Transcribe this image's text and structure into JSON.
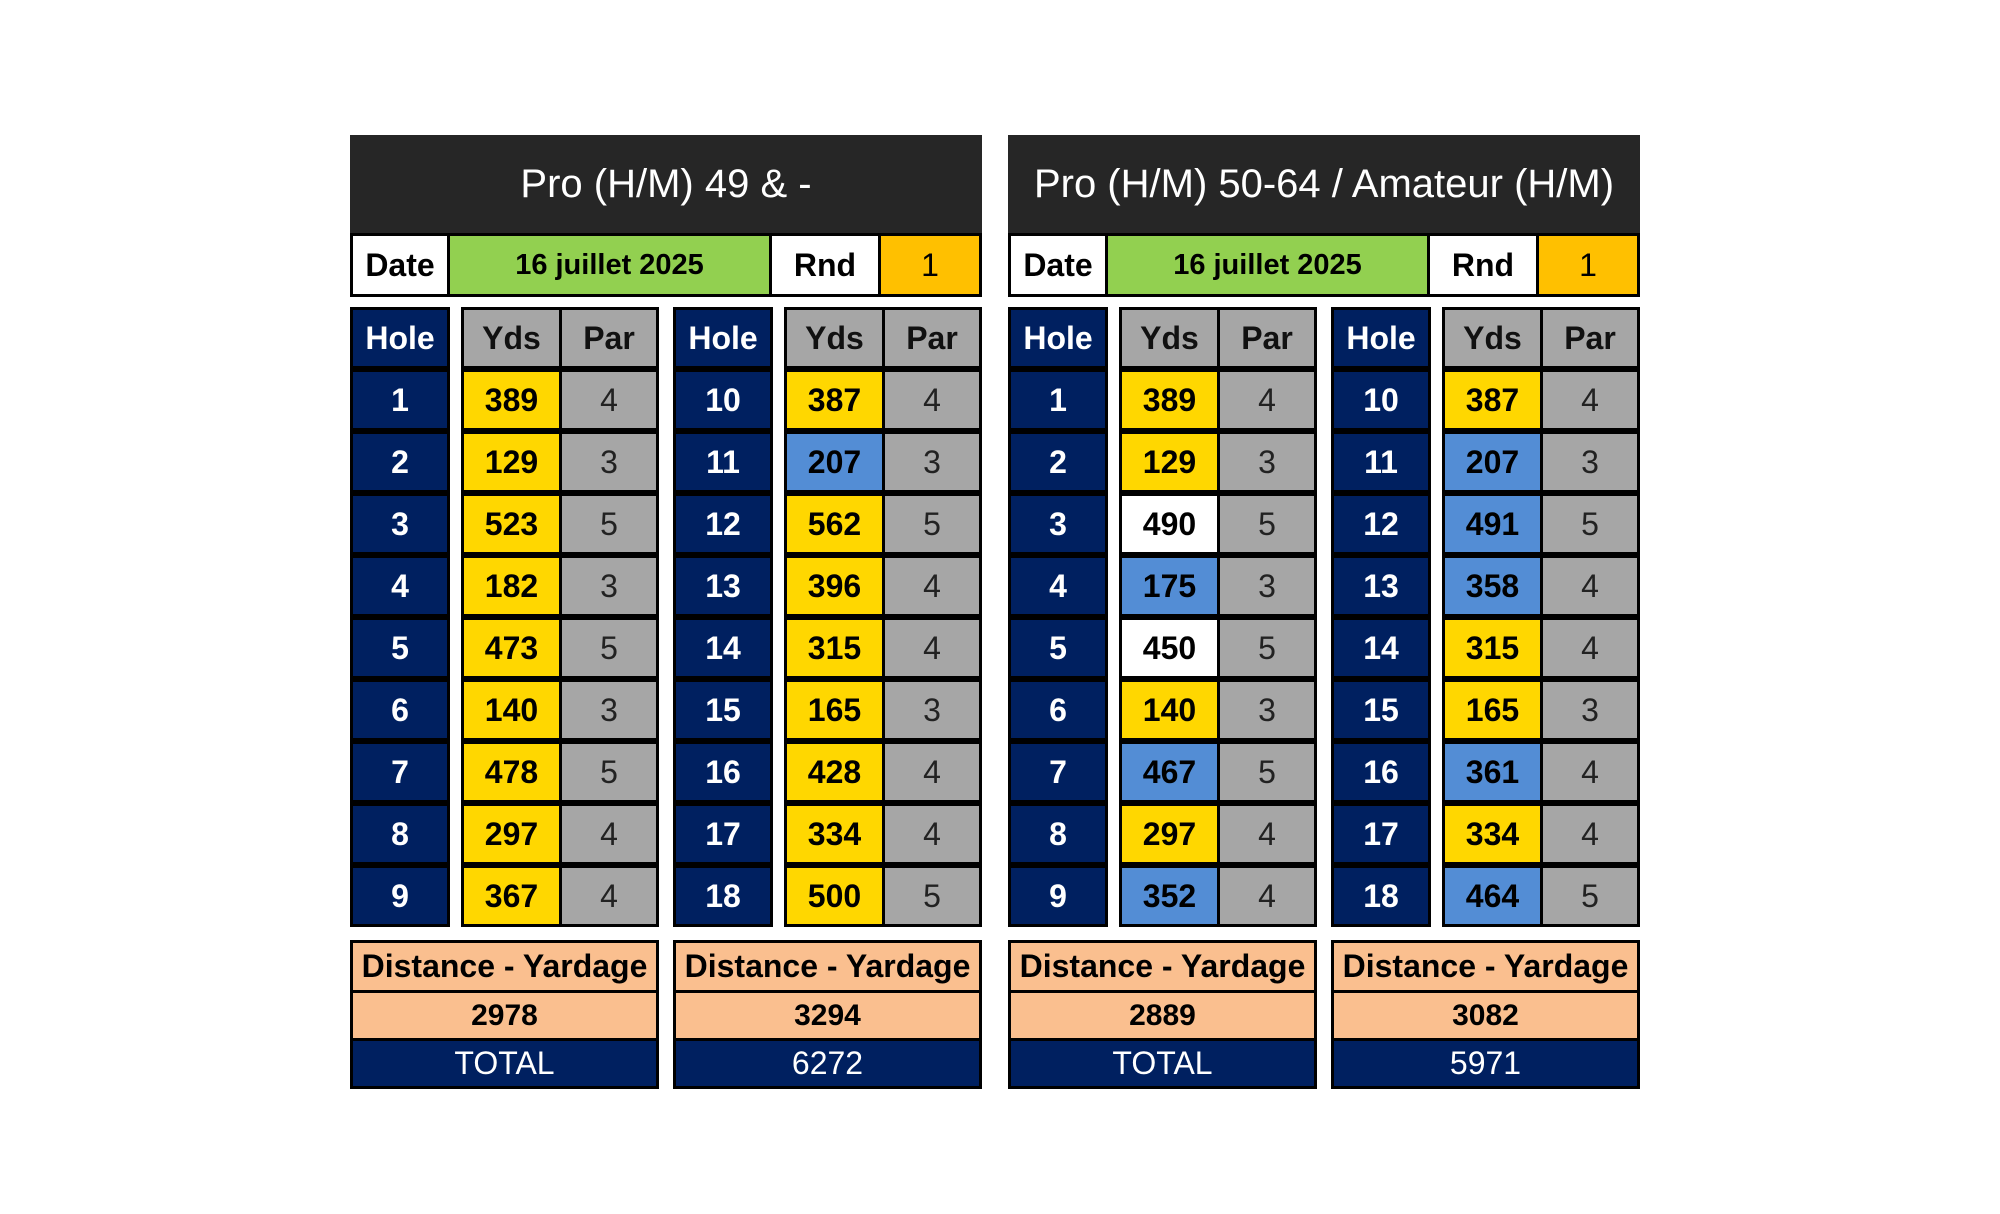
{
  "panels": [
    {
      "title": "Pro (H/M) 49 & -",
      "date_label": "Date",
      "date_value": "16 juillet 2025",
      "round_label": "Rnd",
      "round_value": "1",
      "headers": {
        "hole": "Hole",
        "yds": "Yds",
        "par": "Par"
      },
      "front": [
        {
          "hole": "1",
          "yds": "389",
          "par": "4",
          "color": "#ffd700"
        },
        {
          "hole": "2",
          "yds": "129",
          "par": "3",
          "color": "#ffd700"
        },
        {
          "hole": "3",
          "yds": "523",
          "par": "5",
          "color": "#ffd700"
        },
        {
          "hole": "4",
          "yds": "182",
          "par": "3",
          "color": "#ffd700"
        },
        {
          "hole": "5",
          "yds": "473",
          "par": "5",
          "color": "#ffd700"
        },
        {
          "hole": "6",
          "yds": "140",
          "par": "3",
          "color": "#ffd700"
        },
        {
          "hole": "7",
          "yds": "478",
          "par": "5",
          "color": "#ffd700"
        },
        {
          "hole": "8",
          "yds": "297",
          "par": "4",
          "color": "#ffd700"
        },
        {
          "hole": "9",
          "yds": "367",
          "par": "4",
          "color": "#ffd700"
        }
      ],
      "back": [
        {
          "hole": "10",
          "yds": "387",
          "par": "4",
          "color": "#ffd700"
        },
        {
          "hole": "11",
          "yds": "207",
          "par": "3",
          "color": "#538dd5"
        },
        {
          "hole": "12",
          "yds": "562",
          "par": "5",
          "color": "#ffd700"
        },
        {
          "hole": "13",
          "yds": "396",
          "par": "4",
          "color": "#ffd700"
        },
        {
          "hole": "14",
          "yds": "315",
          "par": "4",
          "color": "#ffd700"
        },
        {
          "hole": "15",
          "yds": "165",
          "par": "3",
          "color": "#ffd700"
        },
        {
          "hole": "16",
          "yds": "428",
          "par": "4",
          "color": "#ffd700"
        },
        {
          "hole": "17",
          "yds": "334",
          "par": "4",
          "color": "#ffd700"
        },
        {
          "hole": "18",
          "yds": "500",
          "par": "5",
          "color": "#ffd700"
        }
      ],
      "summary_front": {
        "label": "Distance - Yardage",
        "value": "2978",
        "total_label": "TOTAL"
      },
      "summary_back": {
        "label": "Distance - Yardage",
        "value": "3294",
        "total_value": "6272"
      }
    },
    {
      "title": "Pro (H/M) 50-64 / Amateur (H/M)",
      "date_label": "Date",
      "date_value": "16 juillet 2025",
      "round_label": "Rnd",
      "round_value": "1",
      "headers": {
        "hole": "Hole",
        "yds": "Yds",
        "par": "Par"
      },
      "front": [
        {
          "hole": "1",
          "yds": "389",
          "par": "4",
          "color": "#ffd700"
        },
        {
          "hole": "2",
          "yds": "129",
          "par": "3",
          "color": "#ffd700"
        },
        {
          "hole": "3",
          "yds": "490",
          "par": "5",
          "color": "#ffffff"
        },
        {
          "hole": "4",
          "yds": "175",
          "par": "3",
          "color": "#538dd5"
        },
        {
          "hole": "5",
          "yds": "450",
          "par": "5",
          "color": "#ffffff"
        },
        {
          "hole": "6",
          "yds": "140",
          "par": "3",
          "color": "#ffd700"
        },
        {
          "hole": "7",
          "yds": "467",
          "par": "5",
          "color": "#538dd5"
        },
        {
          "hole": "8",
          "yds": "297",
          "par": "4",
          "color": "#ffd700"
        },
        {
          "hole": "9",
          "yds": "352",
          "par": "4",
          "color": "#538dd5"
        }
      ],
      "back": [
        {
          "hole": "10",
          "yds": "387",
          "par": "4",
          "color": "#ffd700"
        },
        {
          "hole": "11",
          "yds": "207",
          "par": "3",
          "color": "#538dd5"
        },
        {
          "hole": "12",
          "yds": "491",
          "par": "5",
          "color": "#538dd5"
        },
        {
          "hole": "13",
          "yds": "358",
          "par": "4",
          "color": "#538dd5"
        },
        {
          "hole": "14",
          "yds": "315",
          "par": "4",
          "color": "#ffd700"
        },
        {
          "hole": "15",
          "yds": "165",
          "par": "3",
          "color": "#ffd700"
        },
        {
          "hole": "16",
          "yds": "361",
          "par": "4",
          "color": "#538dd5"
        },
        {
          "hole": "17",
          "yds": "334",
          "par": "4",
          "color": "#ffd700"
        },
        {
          "hole": "18",
          "yds": "464",
          "par": "5",
          "color": "#538dd5"
        }
      ],
      "summary_front": {
        "label": "Distance - Yardage",
        "value": "2889",
        "total_label": "TOTAL"
      },
      "summary_back": {
        "label": "Distance - Yardage",
        "value": "3082",
        "total_value": "5971"
      }
    }
  ]
}
